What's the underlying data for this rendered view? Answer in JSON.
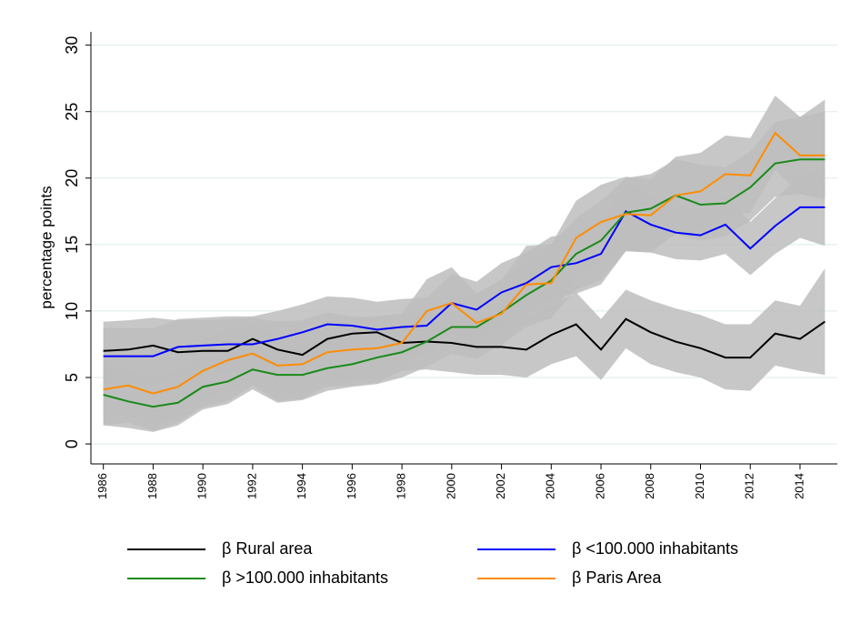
{
  "chart_data": {
    "type": "line",
    "ylabel": "percentage points",
    "x": [
      1986,
      1987,
      1988,
      1989,
      1990,
      1991,
      1992,
      1993,
      1994,
      1995,
      1996,
      1997,
      1998,
      1999,
      2000,
      2001,
      2002,
      2003,
      2004,
      2005,
      2006,
      2007,
      2008,
      2009,
      2010,
      2011,
      2012,
      2013,
      2014,
      2015
    ],
    "xlim": [
      1985.5,
      2015.5
    ],
    "xticks": [
      1986,
      1988,
      1990,
      1992,
      1994,
      1996,
      1998,
      2000,
      2002,
      2004,
      2006,
      2008,
      2010,
      2012,
      2014
    ],
    "ylim": [
      -1.5,
      31
    ],
    "yticks": [
      0,
      5,
      10,
      15,
      20,
      25,
      30
    ],
    "grid": true,
    "band_color": "#bdbdbd",
    "series": [
      {
        "name": "β Rural area",
        "color": "#000000",
        "values": [
          7.0,
          7.1,
          7.4,
          6.9,
          7.0,
          7.0,
          7.9,
          7.1,
          6.7,
          7.9,
          8.3,
          8.4,
          7.6,
          7.7,
          7.6,
          7.3,
          7.3,
          7.1,
          8.2,
          9.0,
          7.1,
          9.4,
          8.4,
          7.7,
          7.2,
          6.5,
          6.5,
          8.3,
          7.9,
          9.2
        ],
        "lower": [
          1.4,
          1.6,
          1.0,
          1.6,
          2.8,
          3.2,
          4.4,
          3.2,
          3.4,
          4.3,
          4.4,
          4.6,
          5.5,
          5.6,
          5.4,
          5.2,
          5.2,
          5.0,
          6.0,
          6.6,
          4.8,
          7.2,
          6.0,
          5.4,
          5.0,
          4.1,
          4.0,
          5.9,
          5.5,
          5.2
        ],
        "upper": [
          9.2,
          9.3,
          9.5,
          9.3,
          9.3,
          9.4,
          9.5,
          9.2,
          9.3,
          9.9,
          9.6,
          9.6,
          9.8,
          9.9,
          9.8,
          9.5,
          9.5,
          9.3,
          10.3,
          11.4,
          9.4,
          11.6,
          10.8,
          10.2,
          9.7,
          9.0,
          9.0,
          10.8,
          10.4,
          13.2
        ]
      },
      {
        "name": "β <100.000 inhabitants",
        "color": "#0000ff",
        "values": [
          6.6,
          6.6,
          6.6,
          7.3,
          7.4,
          7.5,
          7.5,
          7.9,
          8.4,
          9.0,
          8.9,
          8.6,
          8.8,
          8.9,
          10.6,
          10.1,
          11.4,
          12.1,
          13.3,
          13.6,
          14.3,
          17.5,
          16.5,
          15.9,
          15.7,
          16.5,
          14.7,
          16.4,
          17.8,
          17.8
        ],
        "lower": [
          4.5,
          4.6,
          4.6,
          5.2,
          5.4,
          5.5,
          5.5,
          5.8,
          6.3,
          6.9,
          6.8,
          6.5,
          6.7,
          6.8,
          8.4,
          8.0,
          9.2,
          9.8,
          11.0,
          11.3,
          12.0,
          14.5,
          14.4,
          13.9,
          13.8,
          14.3,
          12.7,
          14.3,
          15.5,
          14.9
        ],
        "upper": [
          8.7,
          8.7,
          8.7,
          9.4,
          9.5,
          9.6,
          9.6,
          10.0,
          10.5,
          11.1,
          11.0,
          10.7,
          10.9,
          11.0,
          12.8,
          12.2,
          13.6,
          14.4,
          15.6,
          15.9,
          16.6,
          19.6,
          18.6,
          17.9,
          17.6,
          18.7,
          16.7,
          18.5,
          20.1,
          20.7
        ]
      },
      {
        "name": "β >100.000 inhabitants",
        "color": "#1a8a1a",
        "values": [
          3.7,
          3.2,
          2.8,
          3.1,
          4.3,
          4.7,
          5.6,
          5.2,
          5.2,
          5.7,
          6.0,
          6.5,
          6.9,
          7.7,
          8.8,
          8.8,
          9.9,
          11.2,
          12.3,
          14.3,
          15.3,
          17.4,
          17.7,
          18.7,
          18.0,
          18.1,
          19.3,
          21.1,
          21.4,
          21.4
        ],
        "lower": [
          1.4,
          1.2,
          0.9,
          1.4,
          2.6,
          3.0,
          4.1,
          3.1,
          3.3,
          4.0,
          4.3,
          4.5,
          5.0,
          5.8,
          6.8,
          6.4,
          7.5,
          8.8,
          9.5,
          11.6,
          12.3,
          14.5,
          14.6,
          15.8,
          15.3,
          15.6,
          16.8,
          18.6,
          18.8,
          18.5
        ],
        "upper": [
          6.0,
          5.5,
          5.0,
          5.4,
          6.5,
          6.8,
          7.6,
          7.3,
          7.3,
          7.9,
          8.0,
          8.4,
          8.9,
          9.9,
          11.0,
          11.3,
          12.4,
          13.6,
          15.0,
          17.0,
          18.3,
          20.0,
          20.3,
          21.4,
          21.0,
          20.8,
          22.0,
          24.2,
          24.6,
          25.9
        ]
      },
      {
        "name": "β Paris Area",
        "color": "#ff8c00",
        "values": [
          4.1,
          4.4,
          3.8,
          4.3,
          5.5,
          6.3,
          6.8,
          5.9,
          6.0,
          6.9,
          7.1,
          7.2,
          7.6,
          10.0,
          10.6,
          9.1,
          9.8,
          12.0,
          12.1,
          15.5,
          16.7,
          17.3,
          17.2,
          18.7,
          19.0,
          20.3,
          20.2,
          23.4,
          21.7,
          21.7
        ],
        "lower": [
          2.0,
          2.2,
          1.6,
          2.1,
          3.3,
          4.0,
          4.6,
          3.8,
          3.9,
          4.6,
          4.9,
          5.0,
          5.5,
          7.6,
          8.3,
          7.0,
          7.4,
          9.2,
          9.4,
          12.7,
          13.8,
          14.5,
          14.4,
          15.8,
          16.1,
          17.3,
          17.4,
          20.6,
          18.8,
          18.4
        ],
        "upper": [
          6.5,
          6.7,
          6.2,
          6.6,
          7.8,
          8.6,
          9.0,
          8.0,
          8.2,
          9.2,
          9.4,
          9.6,
          9.8,
          12.4,
          13.3,
          11.3,
          12.3,
          14.9,
          15.0,
          18.3,
          19.5,
          20.1,
          19.9,
          21.6,
          21.9,
          23.2,
          23.0,
          26.2,
          24.6,
          25.0
        ]
      }
    ]
  }
}
